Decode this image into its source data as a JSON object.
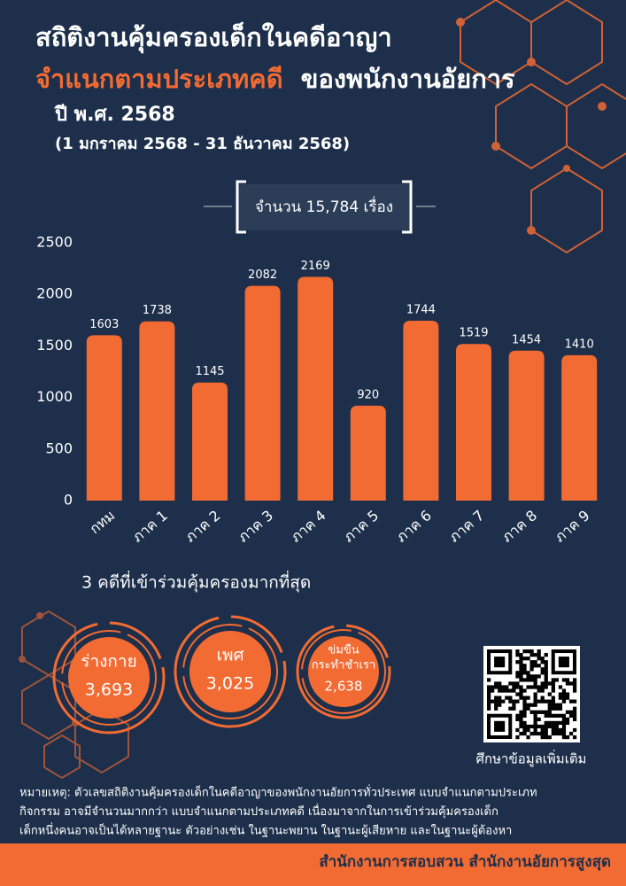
{
  "header": {
    "title_line1": "สถิติงานคุ้มครองเด็กในคดีอาญา",
    "title_line2_highlight": "จำแนกตามประเภทคดี",
    "title_line2_rest": "ของพนักงานอัยการ",
    "year": "ปี พ.ศ. 2568",
    "period": "(1 มกราคม 2568 - 31 ธันวาคม 2568)"
  },
  "total_label": "จำนวน 15,784 เรื่อง",
  "chart_data": {
    "type": "bar",
    "categories": [
      "กทม",
      "ภาค 1",
      "ภาค 2",
      "ภาค 3",
      "ภาค 4",
      "ภาค 5",
      "ภาค 6",
      "ภาค 7",
      "ภาค 8",
      "ภาค 9"
    ],
    "values": [
      1603,
      1738,
      1145,
      2082,
      2169,
      920,
      1744,
      1519,
      1454,
      1410
    ],
    "color": "#f26b33",
    "ylim": [
      0,
      2500
    ],
    "yticks": [
      0,
      500,
      1000,
      1500,
      2000,
      2500
    ],
    "grid": false
  },
  "top3": {
    "title": "3 คดีที่เข้าร่วมคุ้มครองมากที่สุด",
    "items": [
      {
        "label": [
          "ร่างกาย"
        ],
        "value": "3,693"
      },
      {
        "label": [
          "เพศ"
        ],
        "value": "3,025"
      },
      {
        "label": [
          "ข่มขืน",
          "กระทำชำเรา"
        ],
        "value": "2,638"
      }
    ]
  },
  "qr_caption": "ศึกษาข้อมูลเพิ่มเติม",
  "note": [
    "หมายเหตุ: ตัวเลขสถิติงานคุ้มครองเด็กในคดีอาญาของพนักงานอัยการทั่วประเทศ แบบจำแนกตามประเภท",
    "กิจกรรม อาจมีจำนวนมากกว่า แบบจำแนกตามประเภทคดี เนื่องมาจากในการเข้าร่วมคุ้มครองเด็ก",
    "เด็กหนึ่งคนอาจเป็นได้หลายฐานะ ตัวอย่างเช่น ในฐานะพยาน ในฐานะผู้เสียหาย และในฐานะผู้ต้องหา"
  ],
  "footer": "สำนักงานการสอบสวน สำนักงานอัยการสูงสุด"
}
